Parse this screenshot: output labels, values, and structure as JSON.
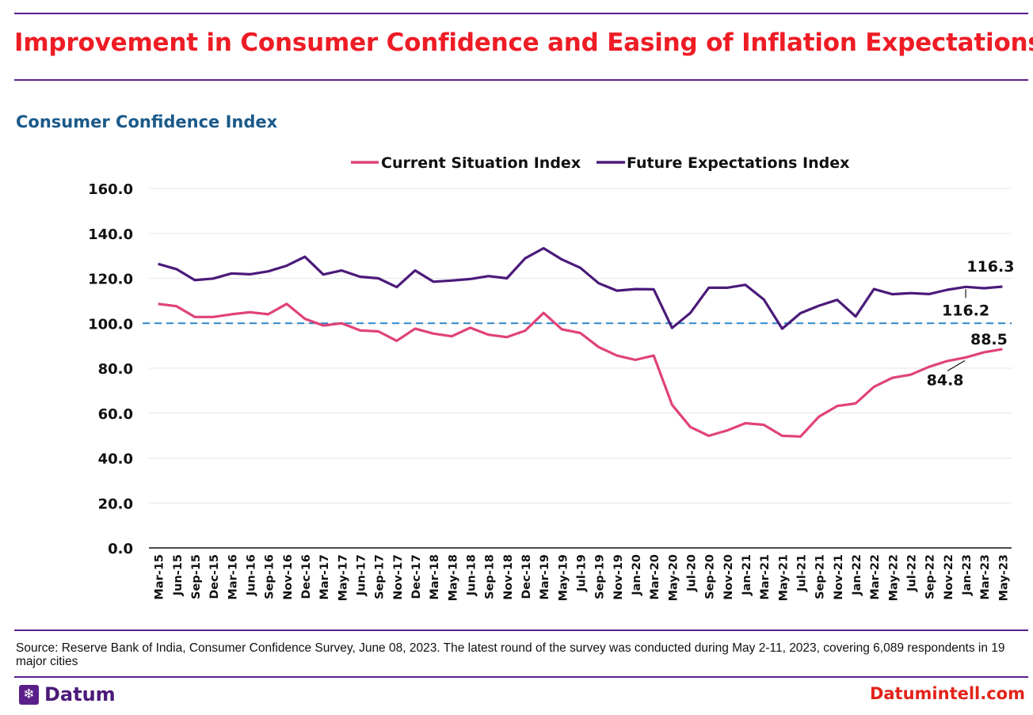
{
  "title": "Improvement in Consumer Confidence and Easing of Inflation Expectations",
  "subtitle": "Consumer Confidence Index",
  "colors": {
    "title": "#ee1c25",
    "rule": "#5b1f8a",
    "subtitle": "#1a5a8a",
    "current": "#e0427a",
    "future": "#4b1a7a",
    "reference_line": "#2e86c8",
    "website": "#e2231a"
  },
  "chart_data": {
    "type": "line",
    "title": "Consumer Confidence Index",
    "xlabel": "",
    "ylabel": "",
    "ylim": [
      0,
      160
    ],
    "yticks": [
      "0.0",
      "20.0",
      "40.0",
      "60.0",
      "80.0",
      "100.0",
      "120.0",
      "140.0",
      "160.0"
    ],
    "grid": true,
    "legend_position": "top-center",
    "reference_line": 100,
    "categories": [
      "Mar-15",
      "Jun-15",
      "Sep-15",
      "Dec-15",
      "Mar-16",
      "Jun-16",
      "Sep-16",
      "Nov-16",
      "Dec-16",
      "Mar-17",
      "May-17",
      "Jun-17",
      "Sep-17",
      "Nov-17",
      "Dec-17",
      "Mar-18",
      "May-18",
      "Jun-18",
      "Sep-18",
      "Nov-18",
      "Dec-18",
      "Mar-19",
      "May-19",
      "Jul-19",
      "Sep-19",
      "Nov-19",
      "Jan-20",
      "Mar-20",
      "May-20",
      "Jul-20",
      "Sep-20",
      "Nov-20",
      "Jan-21",
      "Mar-21",
      "May-21",
      "Jul-21",
      "Sep-21",
      "Nov-21",
      "Jan-22",
      "Mar-22",
      "May-22",
      "Jul-22",
      "Sep-22",
      "Nov-22",
      "Jan-23",
      "Mar-23",
      "May-23"
    ],
    "series": [
      {
        "name": "Current Situation Index",
        "values": [
          108.6,
          107.6,
          102.8,
          102.8,
          104.0,
          104.9,
          104.0,
          108.6,
          102.0,
          99.0,
          100.0,
          96.8,
          96.4,
          92.2,
          97.6,
          95.4,
          94.2,
          98.0,
          94.9,
          93.8,
          96.7,
          104.6,
          97.3,
          95.7,
          89.4,
          85.6,
          83.7,
          85.6,
          63.7,
          53.8,
          49.9,
          52.3,
          55.5,
          54.8,
          49.9,
          49.6,
          58.4,
          63.2,
          64.3,
          71.7,
          75.7,
          77.1,
          80.6,
          83.2,
          84.8,
          87.1,
          88.5
        ]
      },
      {
        "name": "Future Expectations Index",
        "values": [
          126.4,
          124.1,
          119.2,
          119.9,
          122.2,
          121.8,
          123.1,
          125.6,
          129.6,
          121.7,
          123.5,
          120.7,
          120.0,
          116.1,
          123.5,
          118.5,
          119.0,
          119.7,
          121.0,
          120.0,
          128.9,
          133.4,
          128.4,
          124.7,
          117.8,
          114.5,
          115.2,
          115.1,
          97.9,
          104.6,
          115.8,
          115.8,
          117.1,
          110.6,
          97.6,
          104.5,
          107.8,
          110.4,
          103.0,
          115.2,
          112.9,
          113.4,
          113.0,
          114.9,
          116.2,
          115.6,
          116.3
        ]
      }
    ],
    "annotations": [
      {
        "text": "116.3",
        "series": "Future Expectations Index",
        "category": "May-23"
      },
      {
        "text": "116.2",
        "series": "Future Expectations Index",
        "category": "Jan-23"
      },
      {
        "text": "88.5",
        "series": "Current Situation Index",
        "category": "May-23"
      },
      {
        "text": "84.8",
        "series": "Current Situation Index",
        "category": "Jan-23"
      }
    ]
  },
  "footer": {
    "source": "Source: Reserve Bank of India, Consumer Confidence Survey, June 08, 2023. The latest round of the survey was conducted during May 2-11, 2023, covering 6,089 respondents in 19 major cities",
    "brand_name": "Datum",
    "brand_icon": "datum-snowflake-icon",
    "website": "Datumintell.com"
  }
}
